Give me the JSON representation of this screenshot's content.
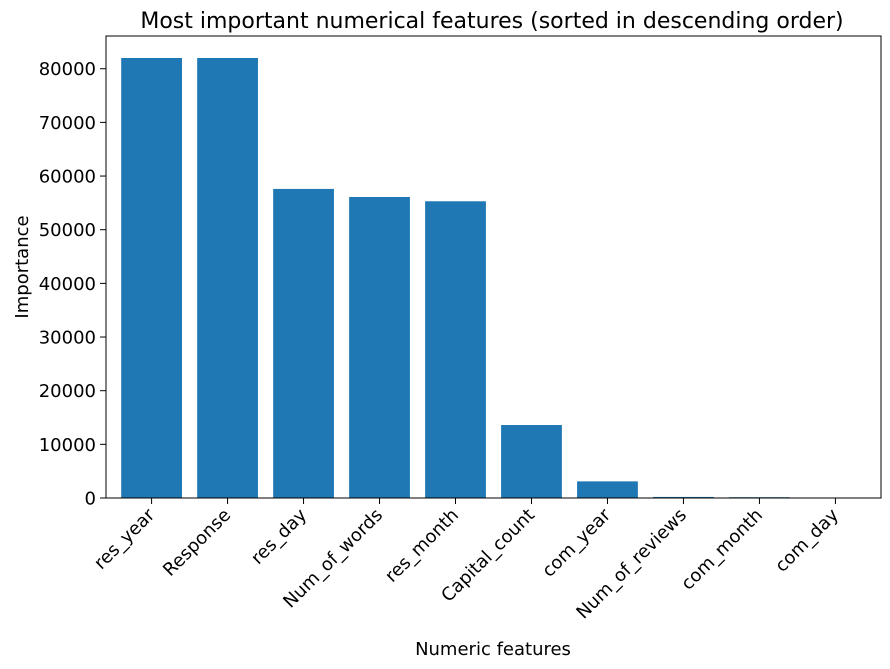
{
  "chart_data": {
    "type": "bar",
    "title": "Most important numerical features (sorted in descending order)",
    "xlabel": "Numeric features",
    "ylabel": "Importance",
    "categories": [
      "res_year",
      "Response",
      "res_day",
      "Num_of_words",
      "res_month",
      "Capital_count",
      "com_year",
      "Num_of_reviews",
      "com_month",
      "com_day"
    ],
    "values": [
      82000,
      82000,
      57600,
      56100,
      55300,
      13600,
      3100,
      200,
      150,
      30
    ],
    "ylim": [
      0,
      86100
    ],
    "yticks": [
      0,
      10000,
      20000,
      30000,
      40000,
      50000,
      60000,
      70000,
      80000
    ],
    "grid": false,
    "bar_color": "#1f77b4",
    "x_tick_rotation": 45
  }
}
